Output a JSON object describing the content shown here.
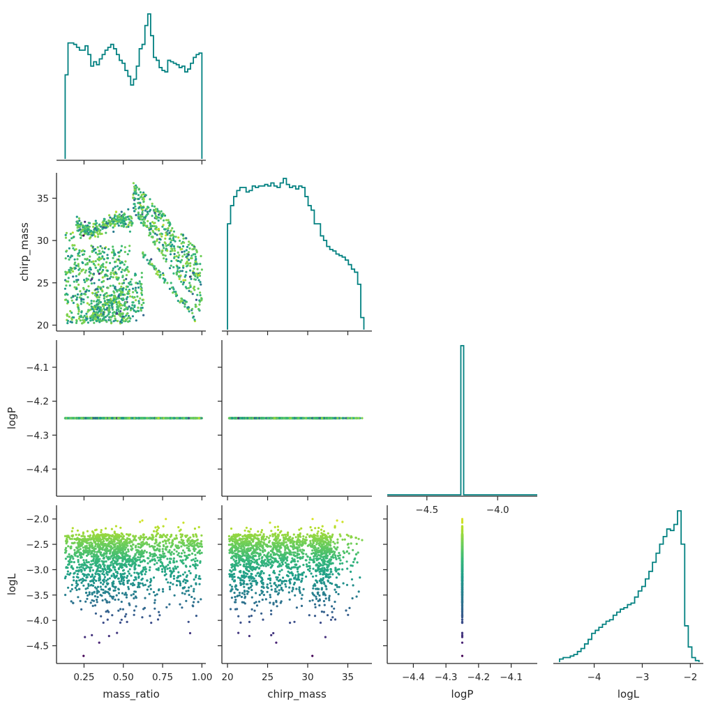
{
  "chart_data": {
    "type": "scatter",
    "variables": [
      "mass_ratio",
      "chirp_mass",
      "logP",
      "logL"
    ],
    "axis_labels": {
      "x": [
        "mass_ratio",
        "chirp_mass",
        "logP",
        "logL"
      ],
      "y": [
        "",
        "chirp_mass",
        "logP",
        "logL"
      ]
    },
    "ranges": {
      "mass_ratio": [
        0.075,
        1.025
      ],
      "chirp_mass": [
        19.3,
        38.0
      ],
      "logP": [
        -4.48,
        -4.02
      ],
      "logL": [
        -4.85,
        -1.73
      ]
    },
    "diag_ranges": {
      "logP": [
        -4.78,
        -3.72
      ]
    },
    "ticks": {
      "mass_ratio": [
        0.25,
        0.5,
        0.75,
        1.0
      ],
      "chirp_mass": [
        20,
        25,
        30,
        35
      ],
      "chirp_mass_y": [
        20,
        25,
        30,
        35
      ],
      "logP": [
        -4.4,
        -4.3,
        -4.2,
        -4.1
      ],
      "logP_diag": [
        -4.5,
        -4.0
      ],
      "logL": [
        -4.5,
        -4.0,
        -3.5,
        -3.0,
        -2.5,
        -2.0
      ],
      "logL_diag": [
        -4,
        -3,
        -2
      ]
    },
    "tick_labels": {
      "mass_ratio": [
        "0.25",
        "0.50",
        "0.75",
        "1.00"
      ],
      "chirp_mass": [
        "20",
        "25",
        "30",
        "35"
      ],
      "chirp_mass_y": [
        "20",
        "25",
        "30",
        "35"
      ],
      "logP": [
        "−4.4",
        "−4.3",
        "−4.2",
        "−4.1"
      ],
      "logP_diag": [
        "−4.5",
        "−4.0"
      ],
      "logL": [
        "−4.5",
        "−4.0",
        "−3.5",
        "−3.0",
        "−2.5",
        "−2.0"
      ],
      "logL_diag": [
        "−4",
        "−3",
        "−2"
      ]
    },
    "logP_value": -4.25,
    "color_by": "logL",
    "colormap": "viridis",
    "histogram_color": "#008080",
    "histograms": {
      "mass_ratio": {
        "range": [
          0.13,
          1.0
        ],
        "counts": [
          0.58,
          0.8,
          0.8,
          0.79,
          0.77,
          0.75,
          0.75,
          0.78,
          0.72,
          0.64,
          0.67,
          0.65,
          0.69,
          0.72,
          0.75,
          0.77,
          0.79,
          0.76,
          0.72,
          0.68,
          0.66,
          0.61,
          0.57,
          0.51,
          0.55,
          0.64,
          0.76,
          0.79,
          0.92,
          1.0,
          0.85,
          0.7,
          0.68,
          0.63,
          0.61,
          0.6,
          0.68,
          0.67,
          0.66,
          0.65,
          0.63,
          0.64,
          0.6,
          0.62,
          0.66,
          0.7,
          0.72,
          0.73
        ]
      },
      "chirp_mass": {
        "range": [
          20.0,
          37.0
        ],
        "counts": [
          0.7,
          0.82,
          0.88,
          0.92,
          0.94,
          0.94,
          0.91,
          0.92,
          0.95,
          0.94,
          0.95,
          0.95,
          0.96,
          0.95,
          0.97,
          0.95,
          0.94,
          0.97,
          1.0,
          0.96,
          0.94,
          0.95,
          0.93,
          0.95,
          0.94,
          0.88,
          0.82,
          0.79,
          0.7,
          0.7,
          0.62,
          0.59,
          0.55,
          0.53,
          0.52,
          0.5,
          0.49,
          0.48,
          0.46,
          0.43,
          0.4,
          0.38,
          0.3,
          0.08
        ]
      },
      "logP": {
        "peak": -4.25,
        "width": 0.02
      },
      "logL": {
        "range": [
          -4.72,
          -1.82
        ],
        "counts": [
          0.02,
          0.03,
          0.03,
          0.04,
          0.05,
          0.07,
          0.09,
          0.12,
          0.15,
          0.19,
          0.21,
          0.23,
          0.25,
          0.27,
          0.28,
          0.31,
          0.33,
          0.35,
          0.36,
          0.38,
          0.39,
          0.43,
          0.47,
          0.5,
          0.55,
          0.6,
          0.66,
          0.72,
          0.78,
          0.83,
          0.88,
          0.87,
          0.91,
          1.0,
          0.78,
          0.24,
          0.1,
          0.03,
          0.01
        ]
      }
    },
    "seed": 7
  }
}
